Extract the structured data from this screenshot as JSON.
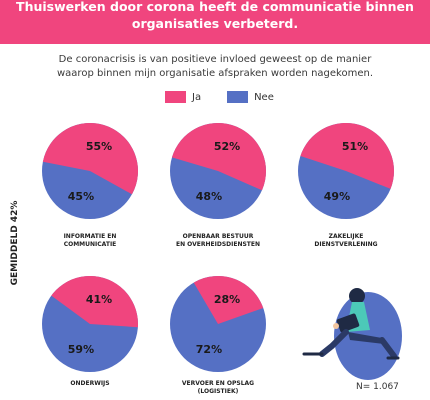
{
  "title_line1": "Thuiswerken door corona heeft de communicatie binnen",
  "title_line2": "organisaties verbeterd.",
  "subtitle_line1": "De coronacrisis is van positieve invloed geweest op de manier",
  "subtitle_line2": "waarop binnen mijn organisatie afspraken worden nagekomen.",
  "side_label": "GEMIDDELD 42%",
  "sample_size": "N= 1.067",
  "colors": {
    "ja": "#f0457e",
    "nee": "#5570c4",
    "title_band": "#f0457e"
  },
  "chart_data": {
    "type": "pie",
    "legend": [
      "Ja",
      "Nee"
    ],
    "pies": [
      {
        "label_lines": [
          "INFORMATIE EN",
          "COMMUNICATIE"
        ],
        "ja": 55,
        "nee": 45
      },
      {
        "label_lines": [
          "OPENBAAR BESTUUR",
          "EN OVERHEIDSDIENSTEN"
        ],
        "ja": 52,
        "nee": 48
      },
      {
        "label_lines": [
          "ZAKELIJKE",
          "DIENSTVERLENING"
        ],
        "ja": 51,
        "nee": 49
      },
      {
        "label_lines": [
          "ONDERWIJS"
        ],
        "ja": 41,
        "nee": 59
      },
      {
        "label_lines": [
          "VERVOER EN OPSLAG",
          "(LOGISTIEK)"
        ],
        "ja": 28,
        "nee": 72
      }
    ]
  }
}
